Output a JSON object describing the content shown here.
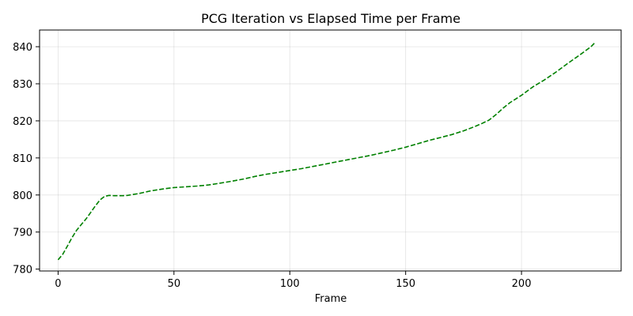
{
  "chart_data": {
    "type": "line",
    "title": "PCG Iteration vs Elapsed Time per Frame",
    "xlabel": "Frame",
    "ylabel": "",
    "xlim": [
      -8,
      243
    ],
    "ylim": [
      779.5,
      844.5
    ],
    "xticks": [
      0,
      50,
      100,
      150,
      200
    ],
    "yticks": [
      780,
      790,
      800,
      810,
      820,
      830,
      840
    ],
    "grid": true,
    "series": [
      {
        "color": "#008000",
        "style": "dashed",
        "x": [
          0,
          2,
          4,
          6,
          8,
          10,
          12,
          14,
          16,
          18,
          20,
          22,
          24,
          26,
          28,
          30,
          35,
          40,
          45,
          50,
          55,
          60,
          65,
          70,
          75,
          80,
          85,
          90,
          95,
          100,
          105,
          110,
          115,
          120,
          125,
          130,
          135,
          140,
          145,
          150,
          155,
          160,
          165,
          170,
          175,
          180,
          183,
          186,
          189,
          192,
          195,
          200,
          205,
          210,
          215,
          220,
          225,
          230,
          232
        ],
        "y": [
          782.5,
          784.0,
          786.2,
          788.5,
          790.5,
          792.0,
          793.5,
          795.2,
          797.0,
          798.6,
          799.6,
          799.9,
          799.8,
          799.8,
          799.8,
          799.9,
          800.4,
          801.1,
          801.6,
          802.0,
          802.2,
          802.4,
          802.7,
          803.2,
          803.7,
          804.3,
          805.0,
          805.6,
          806.1,
          806.6,
          807.1,
          807.7,
          808.3,
          808.9,
          809.5,
          810.1,
          810.7,
          811.4,
          812.1,
          812.9,
          813.8,
          814.7,
          815.5,
          816.3,
          817.3,
          818.5,
          819.3,
          820.2,
          821.7,
          823.4,
          824.9,
          826.9,
          829.2,
          831.1,
          833.2,
          835.5,
          837.7,
          840.0,
          841.3
        ]
      }
    ]
  }
}
